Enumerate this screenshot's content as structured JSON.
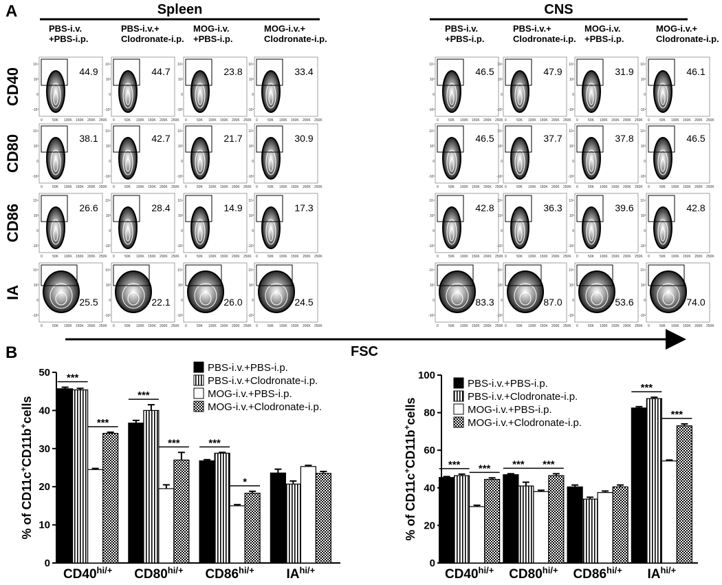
{
  "panel_a": {
    "label": "A",
    "fsc_label": "FSC",
    "flow_axis": {
      "x_ticks": [
        "0",
        "50K",
        "100K",
        "150K",
        "200K",
        "250K"
      ],
      "y_ticks": [
        "10⁴",
        "10³",
        "0",
        "-10³"
      ]
    },
    "row_labels": [
      "CD40",
      "CD80",
      "CD86",
      "IA"
    ],
    "groups": [
      {
        "title": "Spleen",
        "columns": [
          [
            "PBS-i.v.",
            "+PBS-i.p."
          ],
          [
            "PBS-i.v.+",
            "Clodronate-i.p."
          ],
          [
            "MOG-i.v.",
            "+PBS-i.p."
          ],
          [
            "MOG-i.v.+",
            "Clodronate-i.p."
          ]
        ],
        "percentages": [
          [
            "44.9",
            "44.7",
            "23.8",
            "33.4"
          ],
          [
            "38.1",
            "42.7",
            "21.7",
            "30.9"
          ],
          [
            "26.6",
            "28.4",
            "14.9",
            "17.3"
          ],
          [
            "25.5",
            "22.1",
            "26.0",
            "24.5"
          ]
        ]
      },
      {
        "title": "CNS",
        "columns": [
          [
            "PBS-i.v.",
            "+PBS-i.p."
          ],
          [
            "PBS-i.v.+",
            "Clodronate-i.p."
          ],
          [
            "MOG-i.v.",
            "+PBS-i.p."
          ],
          [
            "MOG-i.v.+",
            "Clodronate-i.p."
          ]
        ],
        "percentages": [
          [
            "46.5",
            "47.9",
            "31.9",
            "46.1"
          ],
          [
            "46.5",
            "37.7",
            "37.8",
            "46.5"
          ],
          [
            "42.8",
            "36.3",
            "39.6",
            "42.8"
          ],
          [
            "83.3",
            "87.0",
            "53.6",
            "74.0"
          ]
        ]
      }
    ]
  },
  "panel_b_label": "B",
  "chart_data": [
    {
      "type": "bar",
      "y_label": [
        "% of  CD11c",
        "+",
        "CD11b",
        "+",
        "cells"
      ],
      "categories": [
        "CD40",
        "CD80",
        "CD86",
        "IA"
      ],
      "category_suffix": "hi/+",
      "ylim": [
        0,
        50
      ],
      "yticks": [
        0,
        10,
        20,
        30,
        40,
        50
      ],
      "grid": false,
      "series": [
        {
          "name": "PBS-i.v.+PBS-i.p.",
          "color": "#000000",
          "pattern": "solid",
          "values": [
            45.7,
            36.7,
            26.8,
            23.6
          ],
          "errors": [
            0.4,
            0.7,
            0.3,
            1.0
          ]
        },
        {
          "name": "PBS-i.v.+Clodronate-i.p.",
          "color": "#000000",
          "pattern": "vertical",
          "values": [
            45.4,
            40.0,
            28.8,
            20.7
          ],
          "errors": [
            0.4,
            1.5,
            0.2,
            0.8
          ]
        },
        {
          "name": "MOG-i.v.+PBS-i.p.",
          "color": "#000000",
          "pattern": "none",
          "values": [
            24.5,
            19.5,
            15.0,
            25.3
          ],
          "errors": [
            0.3,
            1.0,
            0.3,
            0.3
          ]
        },
        {
          "name": "MOG-i.v.+Clodronate-i.p.",
          "color": "#000000",
          "pattern": "crosshatch",
          "values": [
            34.0,
            27.0,
            18.3,
            23.5
          ],
          "errors": [
            0.3,
            2.0,
            0.5,
            0.5
          ]
        }
      ],
      "annotations": [
        {
          "text": "***",
          "category": 0,
          "series": [
            0,
            1
          ]
        },
        {
          "text": "***",
          "category": 0,
          "series": [
            2,
            3
          ]
        },
        {
          "text": "***",
          "category": 1,
          "series": [
            0,
            1
          ]
        },
        {
          "text": "***",
          "category": 1,
          "series": [
            2,
            3
          ]
        },
        {
          "text": "***",
          "category": 2,
          "series": [
            0,
            1
          ]
        },
        {
          "text": "*",
          "category": 2,
          "series": [
            2,
            3
          ]
        }
      ]
    },
    {
      "type": "bar",
      "y_label": [
        "% of CD11c",
        "+",
        "CD11b",
        "+",
        "cells"
      ],
      "categories": [
        "CD40",
        "CD80",
        "CD86",
        "IA"
      ],
      "category_suffix": "hi/+",
      "ylim": [
        0,
        100
      ],
      "yticks": [
        0,
        20,
        40,
        60,
        80,
        100
      ],
      "grid": false,
      "series": [
        {
          "name": "PBS-i.v.+PBS-i.p.",
          "color": "#000000",
          "pattern": "solid",
          "values": [
            45.5,
            47.0,
            40.5,
            82.5
          ],
          "errors": [
            0.5,
            0.5,
            1.0,
            0.7
          ]
        },
        {
          "name": "PBS-i.v.+Clodronate-i.p.",
          "color": "#000000",
          "pattern": "vertical",
          "values": [
            46.5,
            41.0,
            34.0,
            87.5
          ],
          "errors": [
            0.8,
            2.0,
            1.0,
            0.7
          ]
        },
        {
          "name": "MOG-i.v.+PBS-i.p.",
          "color": "#000000",
          "pattern": "none",
          "values": [
            30.0,
            38.0,
            37.5,
            54.3
          ],
          "errors": [
            0.7,
            0.7,
            0.8,
            0.5
          ]
        },
        {
          "name": "MOG-i.v.+Clodronate-i.p.",
          "color": "#000000",
          "pattern": "crosshatch",
          "values": [
            44.5,
            46.5,
            40.5,
            73.0
          ],
          "errors": [
            0.8,
            1.0,
            1.0,
            1.0
          ]
        }
      ],
      "annotations": [
        {
          "text": "***",
          "category": 0,
          "series": [
            0,
            1
          ]
        },
        {
          "text": "***",
          "category": 0,
          "series": [
            2,
            3
          ]
        },
        {
          "text": "***",
          "category": 1,
          "series": [
            0,
            1
          ]
        },
        {
          "text": "***",
          "category": 1,
          "series": [
            2,
            3
          ]
        },
        {
          "text": "***",
          "category": 3,
          "series": [
            0,
            1
          ]
        },
        {
          "text": "***",
          "category": 3,
          "series": [
            2,
            3
          ]
        }
      ]
    }
  ]
}
